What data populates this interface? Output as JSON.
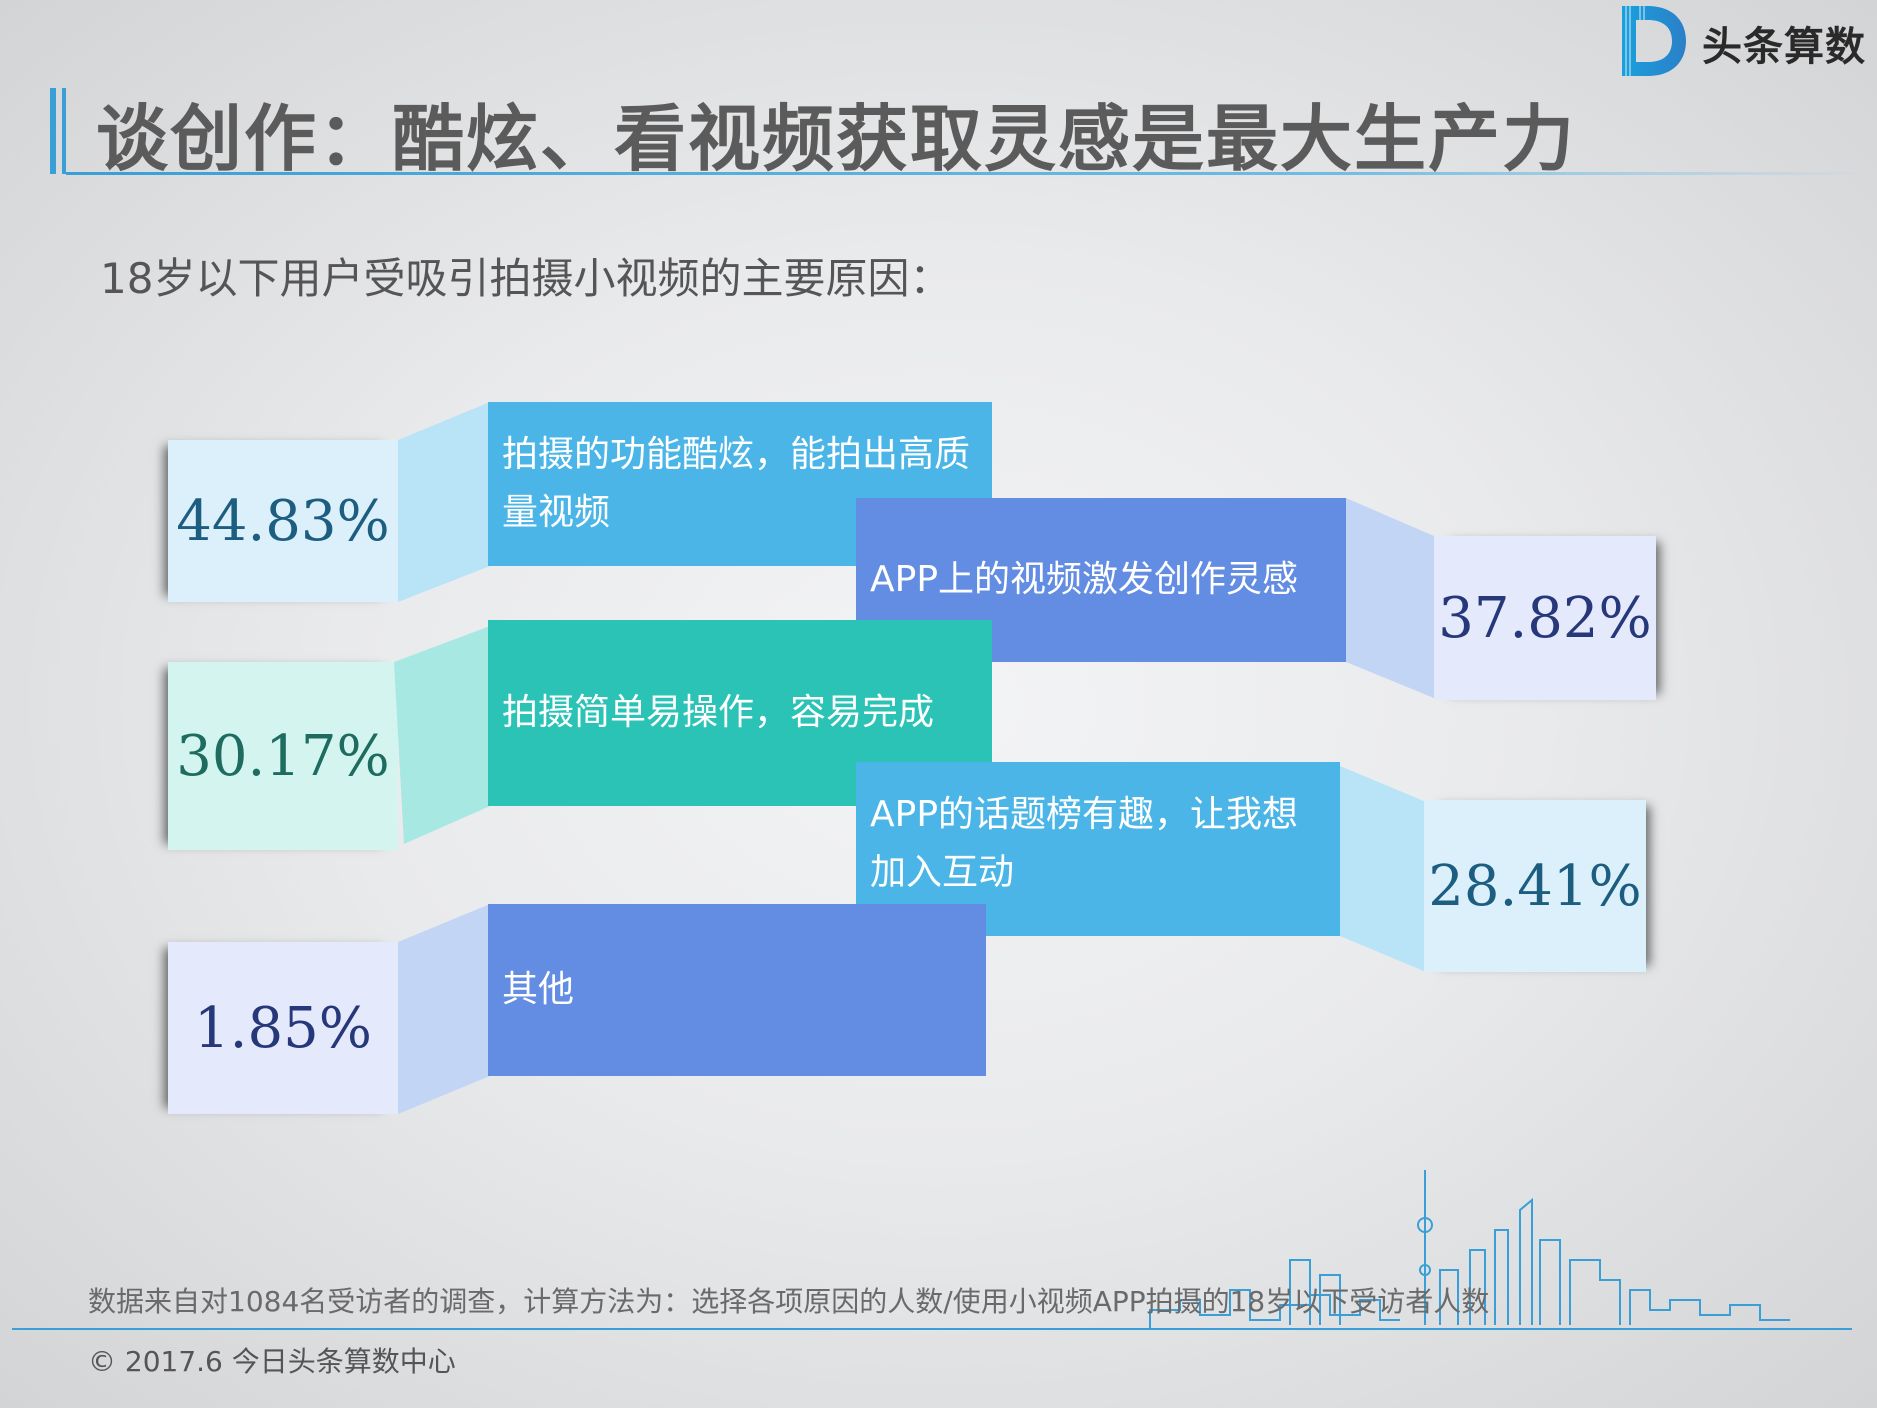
{
  "header": {
    "title": "谈创作：酷炫、看视频获取灵感是最大生产力",
    "logo_text": "头条算数",
    "logo_icon": "D-logo-icon"
  },
  "subtitle": "18岁以下用户受吸引拍摄小视频的主要原因：",
  "colors": {
    "blue_light": "#4ab5e6",
    "blue_dark": "#628de3",
    "teal": "#2bc3b6",
    "accent_line": "#3a9fd6"
  },
  "items": [
    {
      "label": "拍摄的功能酷炫，能拍出高质量视频",
      "label_line1": "拍摄的功能酷炫，能拍出高质",
      "label_line2": "量视频",
      "value": "44.83%"
    },
    {
      "label": "APP上的视频激发创作灵感",
      "value": "37.82%"
    },
    {
      "label": "拍摄简单易操作，容易完成",
      "value": "30.17%"
    },
    {
      "label": "APP的话题榜有趣，让我想加入互动",
      "label_line1": "APP的话题榜有趣，让我想",
      "label_line2": "加入互动",
      "value": "28.41%"
    },
    {
      "label": "其他",
      "value": "1.85%"
    }
  ],
  "footer": {
    "note": "数据来自对1084名受访者的调查，计算方法为：选择各项原因的人数/使用小视频APP拍摄的18岁以下受访者人数",
    "copyright": "© 2017.6 今日头条算数中心"
  }
}
